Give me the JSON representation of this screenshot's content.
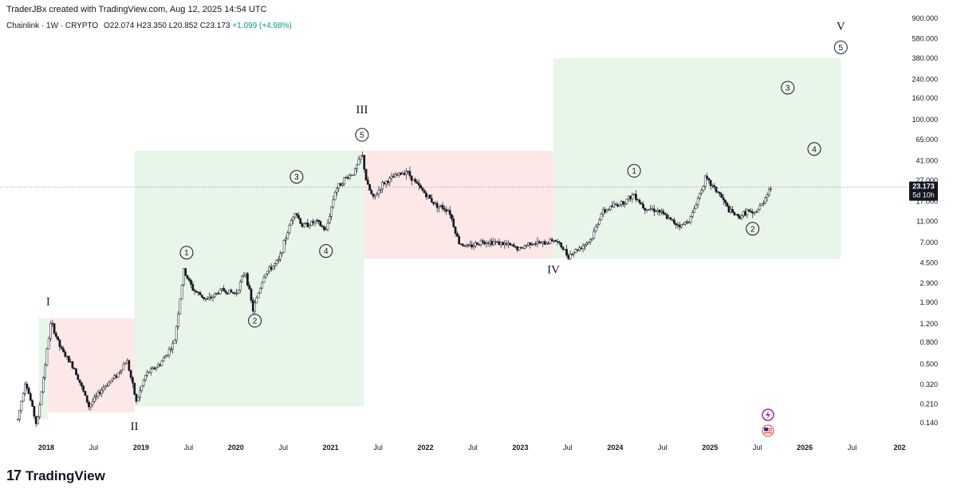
{
  "header": {
    "credit": "TraderJBx created with TradingView.com, Aug 12, 2025 14:54 UTC",
    "symbol": "Chainlink · 1W · CRYPTO",
    "open": "O22.074",
    "high": "H23.350",
    "low": "L20.852",
    "close": "C23.173",
    "change": "+1.099 (+4.98%)"
  },
  "footer": {
    "logo_text": "TradingView",
    "logo_mark": "17"
  },
  "price_tag": {
    "value": "23.173",
    "countdown": "5d 10h"
  },
  "colors": {
    "bull_box": "#e8f5e9",
    "bear_box": "#fde8e8",
    "candle": "#131722",
    "tag_bg": "#131722"
  },
  "chart_data": {
    "type": "candlestick",
    "title": "Chainlink · 1W · CRYPTO",
    "y_scale": "log",
    "y_ticks": [
      900,
      580,
      380,
      240,
      160,
      100,
      65,
      41,
      27,
      17,
      11,
      7,
      4.5,
      2.9,
      1.9,
      1.2,
      0.8,
      0.5,
      0.32,
      0.21,
      0.14
    ],
    "y_tick_labels": [
      "900.000",
      "580.000",
      "380.000",
      "240.000",
      "160.000",
      "100.000",
      "65.000",
      "41.000",
      "27.000",
      "17.000",
      "11.000",
      "7.000",
      "4.500",
      "2.900",
      "1.900",
      "1.200",
      "0.800",
      "0.500",
      "0.320",
      "0.210",
      "0.140"
    ],
    "x_range": [
      2017.6,
      2027.0
    ],
    "x_ticks": [
      {
        "t": 2018.0,
        "label": "2018"
      },
      {
        "t": 2018.5,
        "label": "Jul"
      },
      {
        "t": 2019.0,
        "label": "2019"
      },
      {
        "t": 2019.5,
        "label": "Jul"
      },
      {
        "t": 2020.0,
        "label": "2020"
      },
      {
        "t": 2020.5,
        "label": "Jul"
      },
      {
        "t": 2021.0,
        "label": "2021"
      },
      {
        "t": 2021.5,
        "label": "Jul"
      },
      {
        "t": 2022.0,
        "label": "2022"
      },
      {
        "t": 2022.5,
        "label": "Jul"
      },
      {
        "t": 2023.0,
        "label": "2023"
      },
      {
        "t": 2023.5,
        "label": "Jul"
      },
      {
        "t": 2024.0,
        "label": "2024"
      },
      {
        "t": 2024.5,
        "label": "Jul"
      },
      {
        "t": 2025.0,
        "label": "2025"
      },
      {
        "t": 2025.5,
        "label": "Jul"
      },
      {
        "t": 2026.0,
        "label": "2026"
      },
      {
        "t": 2026.5,
        "label": "Jul"
      },
      {
        "t": 2027.0,
        "label": "202"
      }
    ],
    "price_path": [
      [
        2017.7,
        0.15
      ],
      [
        2017.78,
        0.35
      ],
      [
        2017.85,
        0.2
      ],
      [
        2017.9,
        0.13
      ],
      [
        2018.0,
        0.6
      ],
      [
        2018.05,
        1.25
      ],
      [
        2018.15,
        0.7
      ],
      [
        2018.3,
        0.45
      ],
      [
        2018.45,
        0.2
      ],
      [
        2018.6,
        0.3
      ],
      [
        2018.75,
        0.4
      ],
      [
        2018.85,
        0.55
      ],
      [
        2018.95,
        0.22
      ],
      [
        2019.05,
        0.4
      ],
      [
        2019.2,
        0.5
      ],
      [
        2019.35,
        0.8
      ],
      [
        2019.45,
        3.8
      ],
      [
        2019.55,
        2.5
      ],
      [
        2019.7,
        2.0
      ],
      [
        2019.85,
        2.5
      ],
      [
        2020.0,
        2.3
      ],
      [
        2020.1,
        3.8
      ],
      [
        2020.18,
        1.6
      ],
      [
        2020.3,
        3.5
      ],
      [
        2020.45,
        4.7
      ],
      [
        2020.55,
        9.0
      ],
      [
        2020.62,
        14.0
      ],
      [
        2020.7,
        10.0
      ],
      [
        2020.85,
        11.0
      ],
      [
        2020.95,
        9.0
      ],
      [
        2021.05,
        22.0
      ],
      [
        2021.15,
        28.0
      ],
      [
        2021.25,
        32.0
      ],
      [
        2021.33,
        48.0
      ],
      [
        2021.38,
        25.0
      ],
      [
        2021.45,
        18.0
      ],
      [
        2021.55,
        25.0
      ],
      [
        2021.7,
        30.0
      ],
      [
        2021.8,
        33.0
      ],
      [
        2021.9,
        25.0
      ],
      [
        2022.0,
        20.0
      ],
      [
        2022.1,
        16.0
      ],
      [
        2022.25,
        14.0
      ],
      [
        2022.35,
        7.0
      ],
      [
        2022.45,
        6.3
      ],
      [
        2022.6,
        7.2
      ],
      [
        2022.75,
        7.0
      ],
      [
        2022.9,
        6.5
      ],
      [
        2023.0,
        6.0
      ],
      [
        2023.1,
        7.0
      ],
      [
        2023.25,
        6.8
      ],
      [
        2023.35,
        7.5
      ],
      [
        2023.45,
        6.2
      ],
      [
        2023.5,
        5.2
      ],
      [
        2023.6,
        6.0
      ],
      [
        2023.75,
        7.5
      ],
      [
        2023.85,
        13.0
      ],
      [
        2023.95,
        15.0
      ],
      [
        2024.1,
        17.0
      ],
      [
        2024.2,
        20.0
      ],
      [
        2024.3,
        15.0
      ],
      [
        2024.45,
        14.0
      ],
      [
        2024.6,
        11.0
      ],
      [
        2024.7,
        10.0
      ],
      [
        2024.8,
        12.0
      ],
      [
        2024.95,
        28.0
      ],
      [
        2025.1,
        20.0
      ],
      [
        2025.2,
        14.0
      ],
      [
        2025.3,
        12.0
      ],
      [
        2025.4,
        14.0
      ],
      [
        2025.45,
        12.5
      ],
      [
        2025.55,
        16.0
      ],
      [
        2025.62,
        22.0
      ],
      [
        2025.65,
        23.173
      ]
    ],
    "boxes": [
      {
        "kind": "bull",
        "t0": 2017.92,
        "t1": 2018.02,
        "p_low": 0.15,
        "p_high": 1.35
      },
      {
        "kind": "bear",
        "t0": 2018.02,
        "t1": 2018.93,
        "p_low": 0.175,
        "p_high": 1.35
      },
      {
        "kind": "bull",
        "t0": 2018.93,
        "t1": 2021.35,
        "p_low": 0.2,
        "p_high": 51
      },
      {
        "kind": "bear",
        "t0": 2021.35,
        "t1": 2023.35,
        "p_low": 4.9,
        "p_high": 51
      },
      {
        "kind": "bull",
        "t0": 2023.35,
        "t1": 2026.38,
        "p_low": 4.9,
        "p_high": 380
      }
    ],
    "wave_labels": [
      {
        "text": "I",
        "t": 2018.02,
        "p": 1.8
      },
      {
        "text": "II",
        "t": 2018.93,
        "p": 0.12
      },
      {
        "text": "III",
        "t": 2021.33,
        "p": 115
      },
      {
        "text": "IV",
        "t": 2023.35,
        "p": 3.6
      },
      {
        "text": "V",
        "t": 2026.38,
        "p": 700
      }
    ],
    "circle_labels": [
      {
        "text": "1",
        "t": 2019.48,
        "p": 5.6
      },
      {
        "text": "2",
        "t": 2020.2,
        "p": 1.28
      },
      {
        "text": "3",
        "t": 2020.64,
        "p": 29
      },
      {
        "text": "4",
        "t": 2020.95,
        "p": 5.8
      },
      {
        "text": "5",
        "t": 2021.33,
        "p": 72
      },
      {
        "text": "1",
        "t": 2024.2,
        "p": 33
      },
      {
        "text": "2",
        "t": 2025.45,
        "p": 9.4
      },
      {
        "text": "3",
        "t": 2025.82,
        "p": 200
      },
      {
        "text": "4",
        "t": 2026.1,
        "p": 53
      },
      {
        "text": "5",
        "t": 2026.38,
        "p": 480
      }
    ],
    "last_price": 23.173
  }
}
